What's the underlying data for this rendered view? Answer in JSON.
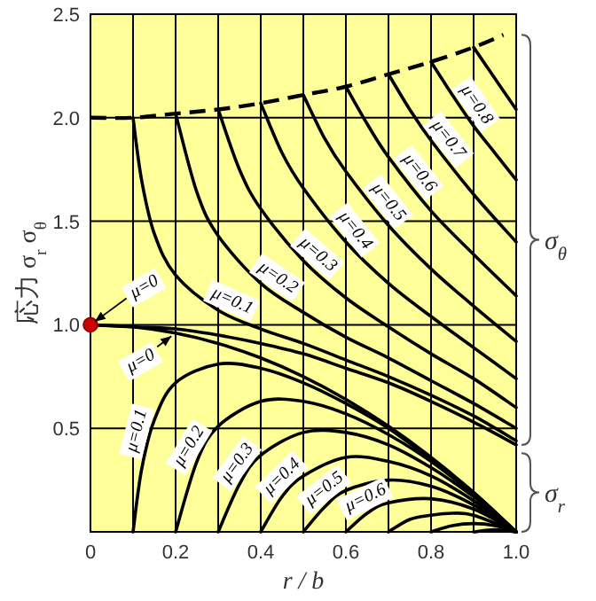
{
  "chart_data": {
    "type": "line",
    "xlabel": "r / b",
    "ylabel": "応力 σ$_{r}$ σ$_{θ}$",
    "xlim": [
      0,
      1
    ],
    "ylim": [
      0,
      2.5
    ],
    "xticks": [
      0,
      {
        "value": 0.1,
        "label": null
      },
      0.2,
      {
        "value": 0.3,
        "label": null
      },
      0.4,
      {
        "value": 0.5,
        "label": null
      },
      0.6,
      {
        "value": 0.7,
        "label": null
      },
      0.8,
      {
        "value": 0.9,
        "label": null
      },
      {
        "value": 1,
        "label": "1.0"
      }
    ],
    "yticks": [
      {
        "value": 0,
        "label": null
      },
      0.5,
      {
        "value": 1,
        "label": "1.0"
      },
      1.5,
      {
        "value": 2,
        "label": "2.0"
      },
      2.5
    ],
    "grid": true,
    "line_style": "solid",
    "annotations": [
      "σ$_{θ}$",
      "σ$_{r}$"
    ],
    "series": [
      {
        "color": "#000000",
        "line_style": "dashed",
        "x": [
          0,
          0.1,
          0.2,
          0.3,
          0.4,
          0.5,
          0.6,
          0.7,
          0.8,
          0.9,
          0.97
        ],
        "values": [
          2.0,
          2.0,
          2.02,
          2.04,
          2.07,
          2.11,
          2.15,
          2.21,
          2.27,
          2.34,
          2.4
        ]
      },
      {
        "name": "μ=0",
        "color": "#000000",
        "x": [
          0,
          0.1,
          0.2,
          0.3,
          0.4,
          0.5,
          0.6,
          0.7,
          0.8,
          0.9,
          1.0
        ],
        "values": [
          1.0,
          0.99,
          0.98,
          0.95,
          0.91,
          0.86,
          0.79,
          0.72,
          0.63,
          0.53,
          0.42
        ]
      },
      {
        "name": "μ=0.1",
        "color": "#000000",
        "x": [
          0.1,
          0.12,
          0.15,
          0.2,
          0.3,
          0.4,
          0.5,
          0.6,
          0.7,
          0.8,
          0.9,
          1.0
        ],
        "values": [
          2.0,
          1.7,
          1.44,
          1.24,
          1.07,
          0.98,
          0.91,
          0.83,
          0.75,
          0.66,
          0.56,
          0.44
        ]
      },
      {
        "name": "μ=0.2",
        "color": "#000000",
        "x": [
          0.2,
          0.25,
          0.3,
          0.4,
          0.5,
          0.6,
          0.7,
          0.8,
          0.9,
          1.0
        ],
        "values": [
          2.02,
          1.64,
          1.43,
          1.2,
          1.06,
          0.94,
          0.84,
          0.73,
          0.62,
          0.5
        ]
      },
      {
        "name": "μ=0.3",
        "color": "#000000",
        "x": [
          0.3,
          0.35,
          0.4,
          0.5,
          0.6,
          0.7,
          0.8,
          0.9,
          1.0
        ],
        "values": [
          2.04,
          1.75,
          1.56,
          1.31,
          1.13,
          0.99,
          0.86,
          0.74,
          0.6
        ]
      },
      {
        "name": "μ=0.4",
        "color": "#000000",
        "x": [
          0.4,
          0.45,
          0.5,
          0.6,
          0.7,
          0.8,
          0.9,
          1.0
        ],
        "values": [
          2.07,
          1.83,
          1.66,
          1.4,
          1.2,
          1.04,
          0.89,
          0.74
        ]
      },
      {
        "name": "μ=0.5",
        "color": "#000000",
        "x": [
          0.5,
          0.55,
          0.6,
          0.7,
          0.8,
          0.9,
          1.0
        ],
        "values": [
          2.11,
          1.9,
          1.74,
          1.48,
          1.27,
          1.09,
          0.92
        ]
      },
      {
        "name": "μ=0.6",
        "color": "#000000",
        "x": [
          0.6,
          0.65,
          0.7,
          0.8,
          0.9,
          1.0
        ],
        "values": [
          2.15,
          1.97,
          1.81,
          1.55,
          1.34,
          1.14
        ]
      },
      {
        "name": "μ=0.7",
        "color": "#000000",
        "x": [
          0.7,
          0.75,
          0.8,
          0.9,
          1.0
        ],
        "values": [
          2.21,
          2.04,
          1.89,
          1.63,
          1.4
        ]
      },
      {
        "name": "μ=0.8",
        "color": "#000000",
        "x": [
          0.8,
          0.85,
          0.9,
          0.95,
          1.0
        ],
        "values": [
          2.27,
          2.11,
          1.96,
          1.83,
          1.7
        ]
      },
      {
        "color": "#000000",
        "x": [
          0.9,
          0.95,
          1.0
        ],
        "values": [
          2.34,
          2.19,
          2.04
        ]
      },
      {
        "name": "μ=0",
        "color": "#000000",
        "x": [
          0,
          0.1,
          0.2,
          0.3,
          0.4,
          0.5,
          0.6,
          0.7,
          0.8,
          0.9,
          1.0
        ],
        "values": [
          1.0,
          0.99,
          0.96,
          0.91,
          0.84,
          0.75,
          0.64,
          0.51,
          0.36,
          0.19,
          0
        ]
      },
      {
        "name": "μ=0.1",
        "color": "#000000",
        "x": [
          0.1,
          0.12,
          0.15,
          0.2,
          0.3,
          0.4,
          0.5,
          0.6,
          0.7,
          0.8,
          0.9,
          1.0
        ],
        "values": [
          0,
          0.3,
          0.54,
          0.72,
          0.81,
          0.79,
          0.72,
          0.62,
          0.5,
          0.35,
          0.19,
          0
        ]
      },
      {
        "name": "μ=0.2",
        "color": "#000000",
        "x": [
          0.2,
          0.25,
          0.3,
          0.4,
          0.5,
          0.6,
          0.7,
          0.8,
          0.9,
          1.0
        ],
        "values": [
          0,
          0.34,
          0.51,
          0.63,
          0.63,
          0.57,
          0.47,
          0.34,
          0.18,
          0
        ]
      },
      {
        "name": "μ=0.3",
        "color": "#000000",
        "x": [
          0.3,
          0.35,
          0.4,
          0.5,
          0.6,
          0.7,
          0.8,
          0.9,
          1.0
        ],
        "values": [
          0,
          0.23,
          0.37,
          0.48,
          0.48,
          0.42,
          0.31,
          0.17,
          0
        ]
      },
      {
        "name": "μ=0.4",
        "color": "#000000",
        "x": [
          0.4,
          0.45,
          0.5,
          0.6,
          0.7,
          0.8,
          0.9,
          1.0
        ],
        "values": [
          0,
          0.17,
          0.27,
          0.36,
          0.34,
          0.27,
          0.15,
          0
        ]
      },
      {
        "name": "μ=0.5",
        "color": "#000000",
        "x": [
          0.5,
          0.55,
          0.6,
          0.7,
          0.8,
          0.9,
          1.0
        ],
        "values": [
          0,
          0.12,
          0.2,
          0.25,
          0.22,
          0.13,
          0
        ]
      },
      {
        "name": "μ=0.6",
        "color": "#000000",
        "x": [
          0.6,
          0.65,
          0.7,
          0.8,
          0.9,
          1.0
        ],
        "values": [
          0,
          0.09,
          0.14,
          0.16,
          0.11,
          0
        ]
      },
      {
        "color": "#000000",
        "x": [
          0.7,
          0.75,
          0.8,
          0.85,
          0.9,
          1.0
        ],
        "values": [
          0,
          0.06,
          0.08,
          0.09,
          0.08,
          0
        ]
      },
      {
        "color": "#000000",
        "x": [
          0.8,
          0.85,
          0.9,
          0.95,
          1.0
        ],
        "values": [
          0,
          0.03,
          0.04,
          0.03,
          0
        ]
      },
      {
        "color": "#000000",
        "x": [
          0.9,
          0.95,
          1.0
        ],
        "values": [
          0,
          0.01,
          0
        ]
      },
      {
        "type": "scatter",
        "marker": "circle",
        "color": "#cc0000",
        "x": [
          0
        ],
        "values": [
          1.0
        ]
      }
    ]
  }
}
